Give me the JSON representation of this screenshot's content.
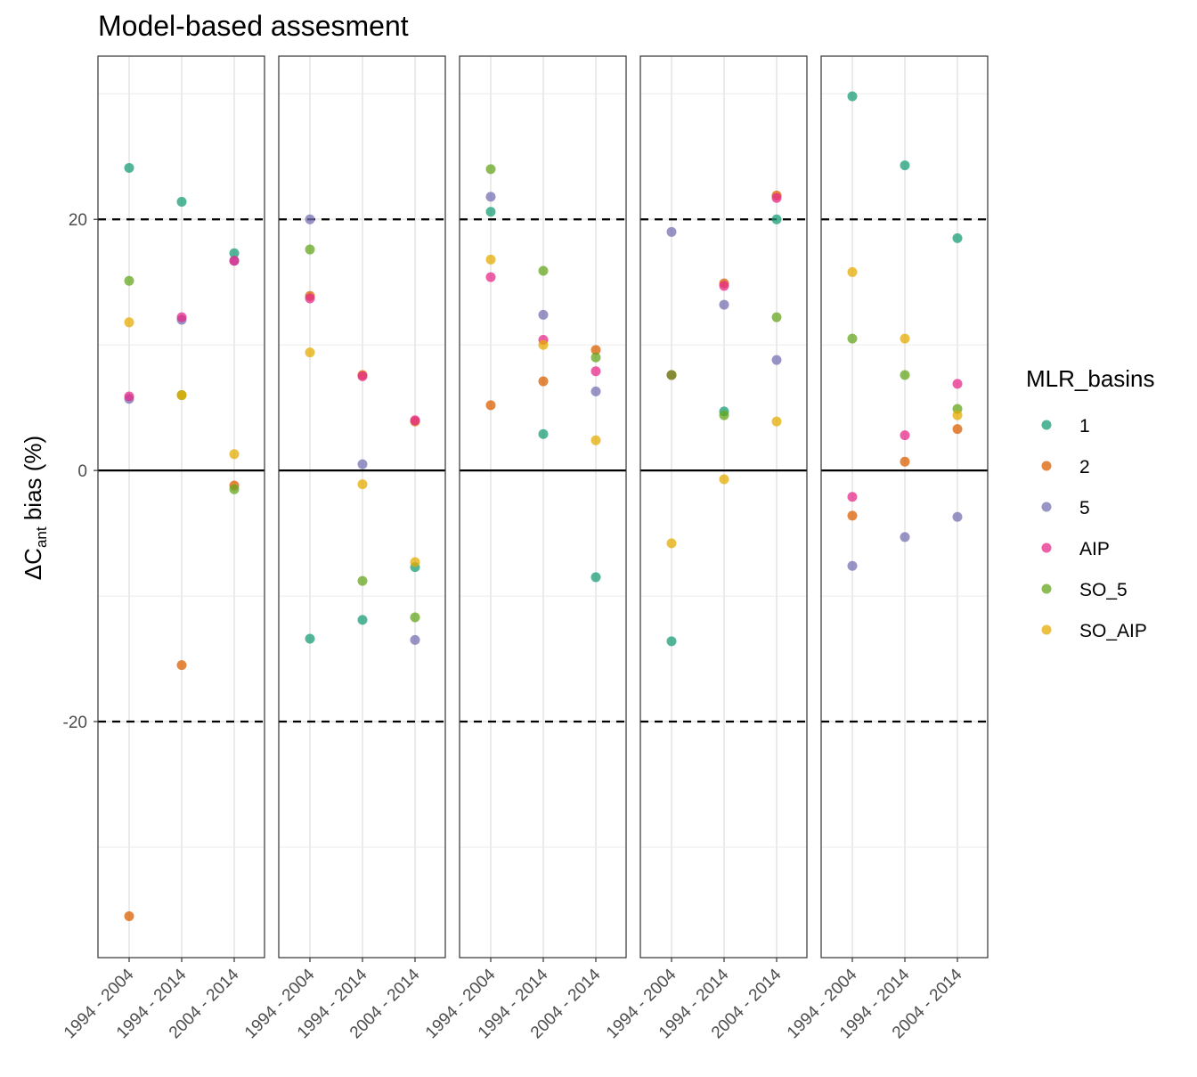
{
  "chart_data": {
    "type": "scatter",
    "title": "Model-based assesment",
    "ylabel": {
      "prefix": "ΔC",
      "subscript": "ant",
      "suffix": " bias (%)"
    },
    "y_ticks": [
      -20,
      0,
      20
    ],
    "ylim": [
      -38.8,
      33.0
    ],
    "reference_lines": {
      "solid": [
        0
      ],
      "dashed": [
        -20,
        20
      ]
    },
    "categories": [
      "1994 - 2004",
      "1994 - 2014",
      "2004 - 2014"
    ],
    "panels": 5,
    "legend": {
      "title": "MLR_basins",
      "placement": "right",
      "entries": [
        {
          "name": "1",
          "color": "#1b9e77"
        },
        {
          "name": "2",
          "color": "#d95f02"
        },
        {
          "name": "5",
          "color": "#7570b3"
        },
        {
          "name": "AIP",
          "color": "#e7298a"
        },
        {
          "name": "SO_5",
          "color": "#66a61e"
        },
        {
          "name": "SO_AIP",
          "color": "#e6ab02"
        }
      ]
    },
    "series": [
      {
        "name": "1",
        "values": [
          [
            24.1,
            21.4,
            17.3
          ],
          [
            -13.4,
            -11.9,
            -7.7
          ],
          [
            20.6,
            2.9,
            -8.5
          ],
          [
            -13.6,
            4.7,
            20.0
          ],
          [
            29.8,
            24.3,
            18.5
          ]
        ]
      },
      {
        "name": "2",
        "values": [
          [
            -35.5,
            -15.5,
            -1.2
          ],
          [
            13.9,
            7.6,
            3.9
          ],
          [
            5.2,
            7.1,
            9.6
          ],
          [
            7.6,
            14.9,
            21.9
          ],
          [
            -3.6,
            0.7,
            3.3
          ]
        ]
      },
      {
        "name": "5",
        "values": [
          [
            5.7,
            12.0,
            16.7
          ],
          [
            20.0,
            0.5,
            -13.5
          ],
          [
            21.8,
            12.4,
            6.3
          ],
          [
            19.0,
            13.2,
            8.8
          ],
          [
            -7.6,
            -5.3,
            -3.7
          ]
        ]
      },
      {
        "name": "AIP",
        "values": [
          [
            5.9,
            12.2,
            16.7
          ],
          [
            13.7,
            7.5,
            4.0
          ],
          [
            15.4,
            10.4,
            7.9
          ],
          [
            7.6,
            14.7,
            21.7
          ],
          [
            -2.1,
            2.8,
            6.9
          ]
        ]
      },
      {
        "name": "SO_5",
        "values": [
          [
            15.1,
            6.0,
            -1.5
          ],
          [
            17.6,
            -8.8,
            -11.7
          ],
          [
            24.0,
            15.9,
            9.0
          ],
          [
            7.6,
            4.4,
            12.2
          ],
          [
            10.5,
            7.6,
            4.9
          ]
        ]
      },
      {
        "name": "SO_AIP",
        "values": [
          [
            11.8,
            6.0,
            1.3
          ],
          [
            9.4,
            -1.1,
            -7.3
          ],
          [
            16.8,
            10.0,
            2.4
          ],
          [
            -5.8,
            -0.7,
            3.9
          ],
          [
            15.8,
            10.5,
            4.4
          ]
        ]
      }
    ]
  }
}
